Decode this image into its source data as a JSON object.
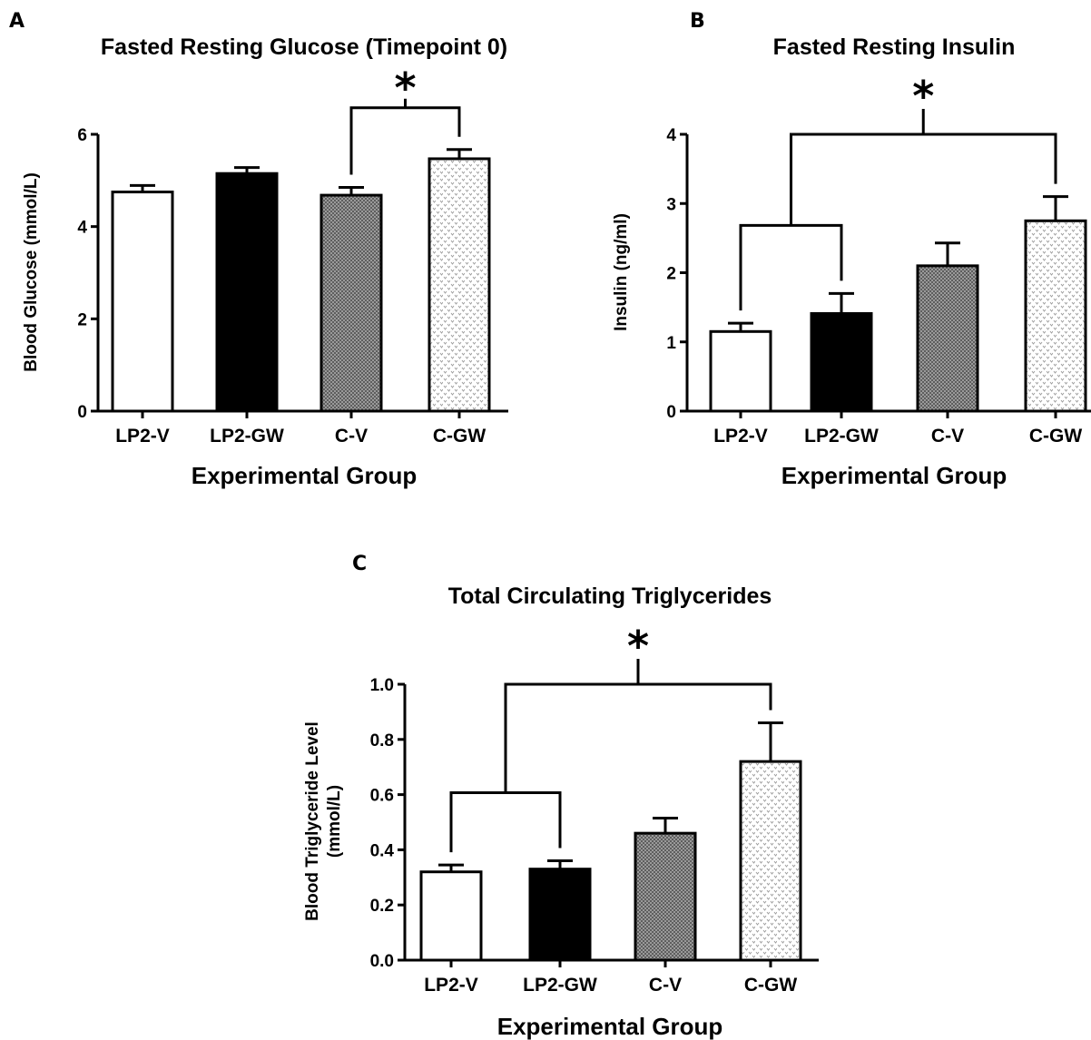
{
  "colors": {
    "ink": "#000000",
    "background": "#ffffff",
    "bar_lp2v": "#ffffff",
    "bar_lp2gw": "#000000",
    "bar_cv": "#8c8c8c",
    "bar_cgw": "#f4f4f4"
  },
  "fill_styles": [
    "white",
    "black",
    "dark-checker-pattern",
    "light-dotted-pattern"
  ],
  "chart_data": [
    {
      "panel": "A",
      "type": "bar",
      "title": "Fasted Resting Glucose (Timepoint 0)",
      "xlabel": "Experimental Group",
      "ylabel": "Blood Glucose (mmol/L)",
      "categories": [
        "LP2-V",
        "LP2-GW",
        "C-V",
        "C-GW"
      ],
      "values": [
        4.75,
        5.15,
        4.68,
        5.47
      ],
      "errors": [
        0.14,
        0.13,
        0.17,
        0.2
      ],
      "ylim": [
        0,
        6
      ],
      "yticks": [
        "0",
        "2",
        "4",
        "6"
      ],
      "significance": [
        {
          "label": "*",
          "left_group": [
            "C-V"
          ],
          "right_group": [
            "C-GW"
          ]
        }
      ]
    },
    {
      "panel": "B",
      "type": "bar",
      "title": "Fasted Resting Insulin",
      "xlabel": "Experimental Group",
      "ylabel": "Insulin (ng/ml)",
      "categories": [
        "LP2-V",
        "LP2-GW",
        "C-V",
        "C-GW"
      ],
      "values": [
        1.15,
        1.41,
        2.1,
        2.75
      ],
      "errors": [
        0.12,
        0.29,
        0.33,
        0.35
      ],
      "ylim": [
        0,
        4
      ],
      "yticks": [
        "0",
        "1",
        "2",
        "3",
        "4"
      ],
      "significance": [
        {
          "label": "*",
          "left_group": [
            "LP2-V",
            "LP2-GW"
          ],
          "right_group": [
            "C-GW"
          ]
        }
      ]
    },
    {
      "panel": "C",
      "type": "bar",
      "title": "Total Circulating Triglycerides",
      "xlabel": "Experimental Group",
      "ylabel_lines": [
        "Blood Triglyceride Level",
        "(mmol/L)"
      ],
      "categories": [
        "LP2-V",
        "LP2-GW",
        "C-V",
        "C-GW"
      ],
      "values": [
        0.32,
        0.33,
        0.46,
        0.72
      ],
      "errors": [
        0.025,
        0.03,
        0.055,
        0.14
      ],
      "ylim": [
        0,
        1.0
      ],
      "yticks": [
        "0.0",
        "0.2",
        "0.4",
        "0.6",
        "0.8",
        "1.0"
      ],
      "significance": [
        {
          "label": "*",
          "left_group": [
            "LP2-V",
            "LP2-GW"
          ],
          "right_group": [
            "C-GW"
          ]
        }
      ]
    }
  ]
}
